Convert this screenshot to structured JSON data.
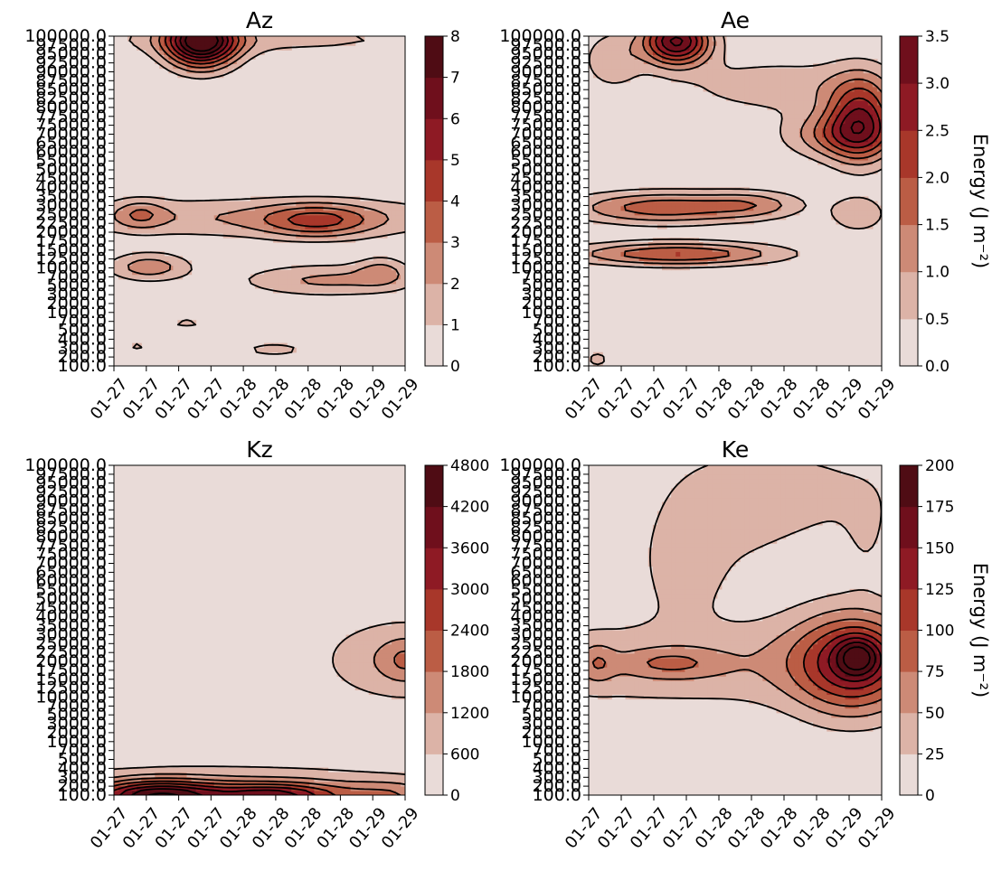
{
  "palette": [
    "#e9dbd8",
    "#dcb3a7",
    "#cd8a76",
    "#bb5d45",
    "#a8372a",
    "#8e1a24",
    "#6f0f1c",
    "#4f0c14"
  ],
  "y_levels": [
    "100.0",
    "200.0",
    "300.0",
    "400.0",
    "500.0",
    "700.0",
    "1000.0",
    "2000.0",
    "3000.0",
    "5000.0",
    "7000.0",
    "10000.0",
    "12500.0",
    "15000.0",
    "17500.0",
    "20000.0",
    "22500.0",
    "25000.0",
    "30000.0",
    "35000.0",
    "40000.0",
    "45000.0",
    "50000.0",
    "55000.0",
    "60000.0",
    "65000.0",
    "70000.0",
    "75000.0",
    "77500.0",
    "80000.0",
    "82500.0",
    "85000.0",
    "87500.0",
    "90000.0",
    "92500.0",
    "95000.0",
    "97500.0",
    "100000.0"
  ],
  "y_top_label": "100000.0",
  "y_bottom_label": "100.0",
  "x_labels": [
    "01-27",
    "01-27",
    "01-27",
    "01-27",
    "01-28",
    "01-28",
    "01-28",
    "01-28",
    "01-29",
    "01-29"
  ],
  "chart_data": [
    {
      "type": "contour",
      "title": "Az",
      "colorbar_ticks": [
        "0",
        "1",
        "2",
        "3",
        "4",
        "5",
        "6",
        "7",
        "8"
      ],
      "colorbar_label": "",
      "vmin": 0,
      "vmax": 8,
      "contour_levels": [
        0,
        1,
        2,
        3,
        4,
        5,
        6,
        7,
        8
      ],
      "grid": false,
      "features": [
        {
          "x": 0.3,
          "y": 0.985,
          "sx": 0.085,
          "sy": 0.055,
          "a": 8.5
        },
        {
          "x": 0.5,
          "y": 0.99,
          "sx": 0.5,
          "sy": 0.035,
          "a": 1.3
        },
        {
          "x": 0.5,
          "y": 0.45,
          "sx": 0.6,
          "sy": 0.045,
          "a": 2.0
        },
        {
          "x": 0.7,
          "y": 0.44,
          "sx": 0.13,
          "sy": 0.035,
          "a": 2.8
        },
        {
          "x": 0.09,
          "y": 0.46,
          "sx": 0.06,
          "sy": 0.03,
          "a": 1.8
        },
        {
          "x": 0.12,
          "y": 0.3,
          "sx": 0.1,
          "sy": 0.03,
          "a": 2.6
        },
        {
          "x": 0.74,
          "y": 0.26,
          "sx": 0.22,
          "sy": 0.035,
          "a": 2.2
        },
        {
          "x": 0.92,
          "y": 0.29,
          "sx": 0.06,
          "sy": 0.03,
          "a": 1.6
        },
        {
          "x": 0.25,
          "y": 0.13,
          "sx": 0.06,
          "sy": 0.015,
          "a": 1.2
        },
        {
          "x": 0.55,
          "y": 0.05,
          "sx": 0.12,
          "sy": 0.025,
          "a": 1.2
        },
        {
          "x": 0.08,
          "y": 0.06,
          "sx": 0.04,
          "sy": 0.02,
          "a": 1.1
        }
      ]
    },
    {
      "type": "contour",
      "title": "Ae",
      "colorbar_ticks": [
        "0.0",
        "0.5",
        "1.0",
        "1.5",
        "2.0",
        "2.5",
        "3.0",
        "3.5"
      ],
      "colorbar_label": "Energy  (J m⁻²)",
      "vmin": 0,
      "vmax": 3.5,
      "contour_levels": [
        0,
        0.5,
        1.0,
        1.5,
        2.0,
        2.5,
        3.0,
        3.5
      ],
      "grid": false,
      "features": [
        {
          "x": 0.3,
          "y": 0.985,
          "sx": 0.08,
          "sy": 0.05,
          "a": 3.6
        },
        {
          "x": 0.08,
          "y": 0.93,
          "sx": 0.07,
          "sy": 0.06,
          "a": 0.9
        },
        {
          "x": 0.65,
          "y": 0.85,
          "sx": 0.25,
          "sy": 0.06,
          "a": 0.8
        },
        {
          "x": 0.93,
          "y": 0.75,
          "sx": 0.08,
          "sy": 0.09,
          "a": 2.6
        },
        {
          "x": 0.85,
          "y": 0.7,
          "sx": 0.13,
          "sy": 0.05,
          "a": 1.4
        },
        {
          "x": 0.25,
          "y": 0.48,
          "sx": 0.22,
          "sy": 0.035,
          "a": 1.8
        },
        {
          "x": 0.57,
          "y": 0.49,
          "sx": 0.12,
          "sy": 0.03,
          "a": 0.9
        },
        {
          "x": 0.3,
          "y": 0.34,
          "sx": 0.25,
          "sy": 0.025,
          "a": 2.0
        },
        {
          "x": 0.92,
          "y": 0.46,
          "sx": 0.07,
          "sy": 0.04,
          "a": 0.9
        },
        {
          "x": 0.03,
          "y": 0.02,
          "sx": 0.03,
          "sy": 0.02,
          "a": 0.7
        }
      ]
    },
    {
      "type": "contour",
      "title": "Kz",
      "colorbar_ticks": [
        "0",
        "600",
        "1200",
        "1800",
        "2400",
        "3000",
        "3600",
        "4200",
        "4800"
      ],
      "colorbar_label": "",
      "vmin": 0,
      "vmax": 4800,
      "contour_levels": [
        0,
        600,
        1200,
        1800,
        2400,
        3000,
        3600,
        4200,
        4800
      ],
      "grid": false,
      "features": [
        {
          "x": 0.4,
          "y": 0.0,
          "sx": 0.55,
          "sy": 0.065,
          "a": 1400
        },
        {
          "x": 0.15,
          "y": 0.0,
          "sx": 0.15,
          "sy": 0.03,
          "a": 3600
        },
        {
          "x": 0.55,
          "y": 0.0,
          "sx": 0.15,
          "sy": 0.025,
          "a": 2600
        },
        {
          "x": 0.95,
          "y": 0.0,
          "sx": 0.12,
          "sy": 0.03,
          "a": 1000
        },
        {
          "x": 1.0,
          "y": 0.41,
          "sx": 0.2,
          "sy": 0.09,
          "a": 1300
        },
        {
          "x": 1.0,
          "y": 0.41,
          "sx": 0.05,
          "sy": 0.04,
          "a": 700
        }
      ]
    },
    {
      "type": "contour",
      "title": "Ke",
      "colorbar_ticks": [
        "0",
        "25",
        "50",
        "75",
        "100",
        "125",
        "150",
        "175",
        "200"
      ],
      "colorbar_label": "Energy  (J m⁻²)",
      "vmin": 0,
      "vmax": 200,
      "contour_levels": [
        0,
        25,
        50,
        75,
        100,
        125,
        150,
        175,
        200
      ],
      "grid": false,
      "features": [
        {
          "x": 0.4,
          "y": 0.4,
          "sx": 0.8,
          "sy": 0.1,
          "a": 44
        },
        {
          "x": 0.9,
          "y": 0.4,
          "sx": 0.14,
          "sy": 0.11,
          "a": 120
        },
        {
          "x": 0.92,
          "y": 0.42,
          "sx": 0.05,
          "sy": 0.04,
          "a": 80
        },
        {
          "x": 0.28,
          "y": 0.4,
          "sx": 0.12,
          "sy": 0.03,
          "a": 40
        },
        {
          "x": 0.03,
          "y": 0.4,
          "sx": 0.04,
          "sy": 0.04,
          "a": 35
        },
        {
          "x": 0.45,
          "y": 0.85,
          "sx": 0.2,
          "sy": 0.15,
          "a": 32
        },
        {
          "x": 0.32,
          "y": 0.68,
          "sx": 0.09,
          "sy": 0.1,
          "a": 32
        },
        {
          "x": 0.75,
          "y": 0.92,
          "sx": 0.22,
          "sy": 0.09,
          "a": 30
        },
        {
          "x": 0.95,
          "y": 0.78,
          "sx": 0.06,
          "sy": 0.1,
          "a": 22
        }
      ]
    }
  ]
}
